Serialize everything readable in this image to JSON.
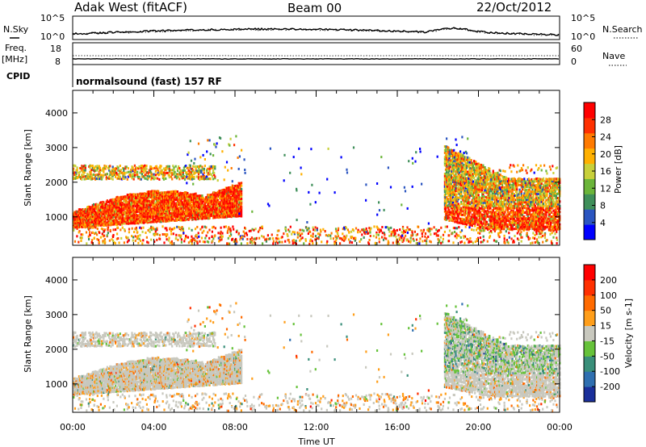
{
  "header": {
    "station": "Adak West (fitACF)",
    "beam": "Beam 00",
    "date": "22/Oct/2012"
  },
  "noise_panel": {
    "left_label": "N.Sky",
    "right_label": "N.Search",
    "left_ticks": [
      "10^5",
      "10^0"
    ],
    "right_ticks": [
      "10^5",
      "10^0"
    ]
  },
  "freq_panel": {
    "left_label": "Freq.",
    "left_unit": "[MHz]",
    "right_label": "Nave",
    "left_ticks": [
      "18",
      "8"
    ],
    "right_ticks": [
      "60",
      "0"
    ]
  },
  "cpid": {
    "label": "CPID",
    "text": "normalsound (fast) 157 RF"
  },
  "colors": {
    "power_scale": [
      "#0000ff",
      "#2b55c0",
      "#3f8f5a",
      "#6bb53a",
      "#c8d03a",
      "#ffb000",
      "#ff7a00",
      "#ff3000",
      "#ff0000"
    ],
    "velocity_scale": [
      "#1a2f9a",
      "#2f6fb0",
      "#3a8f7a",
      "#66c23a",
      "#c8c8be",
      "#ff9e1a",
      "#ff6a00",
      "#ff3000",
      "#ff0000"
    ]
  },
  "chart_data": [
    {
      "type": "heatmap",
      "name": "power",
      "ylabel": "Slant Range [km]",
      "xlabel": "",
      "yticks": [
        "1000",
        "2000",
        "3000",
        "4000"
      ],
      "ylim": [
        180,
        4650
      ],
      "xlim": [
        0,
        24
      ],
      "colorbar": {
        "label": "Power [dB]",
        "ticks": [
          "4",
          "8",
          "12",
          "16",
          "20",
          "24",
          "28"
        ],
        "range": [
          0,
          32
        ]
      }
    },
    {
      "type": "heatmap",
      "name": "velocity",
      "ylabel": "Slant Range [km]",
      "xlabel": "Time UT",
      "xticks": [
        "00:00",
        "04:00",
        "08:00",
        "12:00",
        "16:00",
        "20:00",
        "00:00"
      ],
      "yticks": [
        "1000",
        "2000",
        "3000",
        "4000"
      ],
      "ylim": [
        180,
        4650
      ],
      "xlim": [
        0,
        24
      ],
      "colorbar": {
        "label": "Velocity [m s-1]",
        "ticks": [
          "200",
          "100",
          "50",
          "15",
          "-15",
          "-50",
          "-100",
          "-200"
        ]
      }
    }
  ]
}
